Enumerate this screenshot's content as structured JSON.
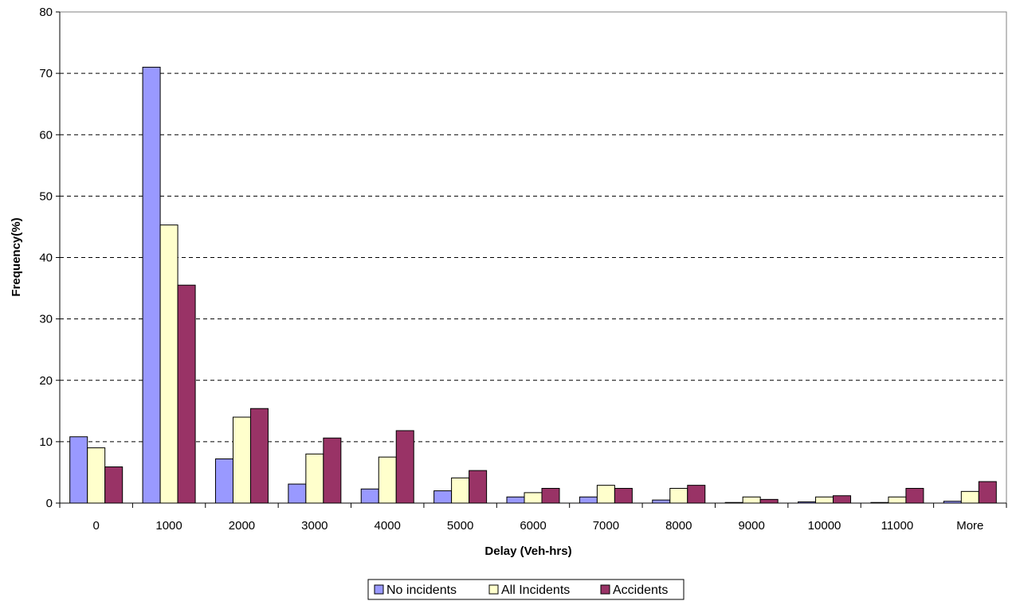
{
  "chart_data": {
    "type": "bar",
    "title": "",
    "xlabel": "Delay (Veh-hrs)",
    "ylabel": "Frequency(%)",
    "categories": [
      "0",
      "1000",
      "2000",
      "3000",
      "4000",
      "5000",
      "6000",
      "7000",
      "8000",
      "9000",
      "10000",
      "11000",
      "More"
    ],
    "ylim": [
      0,
      80
    ],
    "yticks": [
      0,
      10,
      20,
      30,
      40,
      50,
      60,
      70,
      80
    ],
    "grid": "horizontal dashed",
    "legend_position": "bottom-center",
    "series": [
      {
        "name": "No incidents",
        "color": "#9999FF",
        "values": [
          10.8,
          71.0,
          7.2,
          3.1,
          2.3,
          2.0,
          1.0,
          1.0,
          0.5,
          0.1,
          0.2,
          0.1,
          0.3
        ]
      },
      {
        "name": "All Incidents",
        "color": "#FFFFCC",
        "values": [
          9.0,
          45.3,
          14.0,
          8.0,
          7.5,
          4.1,
          1.7,
          2.9,
          2.4,
          1.0,
          1.0,
          1.0,
          1.9
        ]
      },
      {
        "name": "Accidents",
        "color": "#993366",
        "values": [
          5.9,
          35.5,
          15.4,
          10.6,
          11.8,
          5.3,
          2.4,
          2.4,
          2.9,
          0.6,
          1.2,
          2.4,
          3.5
        ]
      }
    ]
  }
}
